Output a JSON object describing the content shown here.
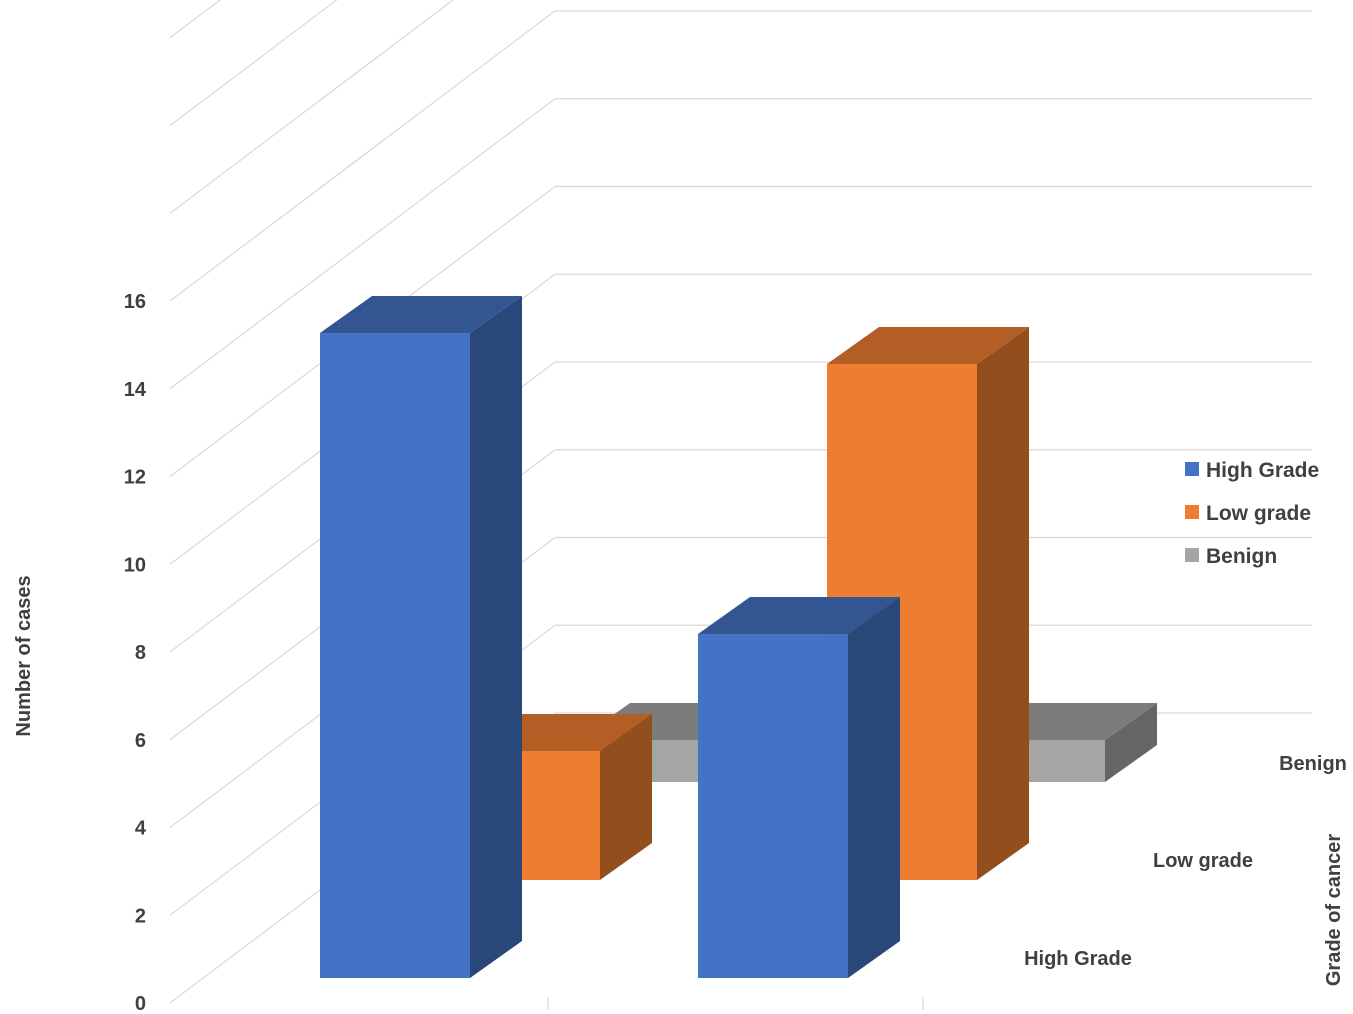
{
  "chart_data": {
    "type": "bar",
    "is_3d": true,
    "categories": [
      "",
      ""
    ],
    "series": [
      {
        "name": "High Grade",
        "color": "#4472C4",
        "values": [
          15,
          8
        ]
      },
      {
        "name": "Low grade",
        "color": "#ED7D31",
        "values": [
          3,
          12
        ]
      },
      {
        "name": "Benign",
        "color": "#A5A5A5",
        "values": [
          0,
          0
        ]
      }
    ],
    "ylabel": "Number of cases",
    "depth_label": "Grade of cancer",
    "depth_categories": [
      "High Grade",
      "Low grade",
      "Benign"
    ],
    "ylim": [
      0,
      16
    ],
    "yticks": [
      0,
      2,
      4,
      6,
      8,
      10,
      12,
      14,
      16
    ],
    "grid": true,
    "legend": {
      "position": "right",
      "items": [
        "High Grade",
        "Low grade",
        "Benign"
      ]
    }
  }
}
